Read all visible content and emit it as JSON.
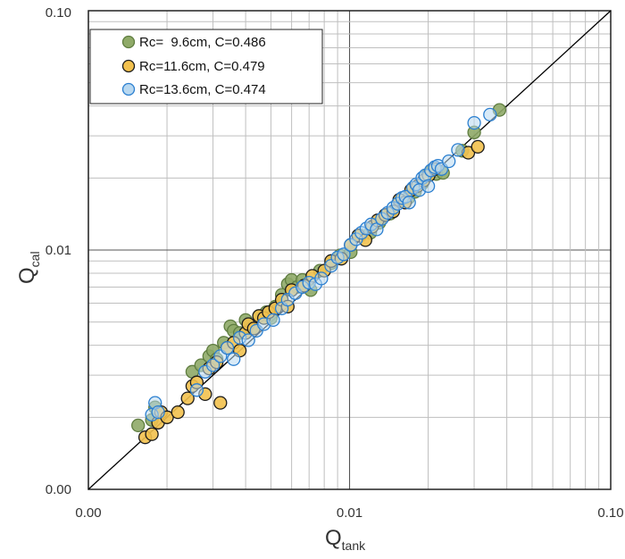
{
  "chart_data": {
    "type": "scatter",
    "scale": "log",
    "xlim": [
      0.001,
      0.1
    ],
    "ylim": [
      0.001,
      0.1
    ],
    "x_ticks": [
      {
        "value": 0.001,
        "label": "0.00"
      },
      {
        "value": 0.01,
        "label": "0.01"
      },
      {
        "value": 0.1,
        "label": "0.10"
      }
    ],
    "y_ticks": [
      {
        "value": 0.001,
        "label": "0.00"
      },
      {
        "value": 0.01,
        "label": "0.01"
      },
      {
        "value": 0.1,
        "label": "0.10"
      }
    ],
    "xlabel": {
      "main": "Q",
      "sub": "tank"
    },
    "ylabel": {
      "main": "Q",
      "sub": "cal"
    },
    "grid": true,
    "diagonal": "y=x",
    "legend_position": "top-left",
    "series": [
      {
        "name": "Rc=  9.6cm, C=0.486",
        "marker_fill": "#8faa68",
        "marker_stroke": "#5f7d40",
        "points": [
          [
            0.00155,
            0.00185
          ],
          [
            0.00175,
            0.00195
          ],
          [
            0.0018,
            0.0022
          ],
          [
            0.0025,
            0.0031
          ],
          [
            0.0027,
            0.0033
          ],
          [
            0.0029,
            0.0036
          ],
          [
            0.003,
            0.0038
          ],
          [
            0.0031,
            0.0035
          ],
          [
            0.0033,
            0.0041
          ],
          [
            0.0035,
            0.0048
          ],
          [
            0.0036,
            0.0046
          ],
          [
            0.0038,
            0.0045
          ],
          [
            0.004,
            0.0051
          ],
          [
            0.0042,
            0.0047
          ],
          [
            0.0045,
            0.0053
          ],
          [
            0.0048,
            0.0055
          ],
          [
            0.005,
            0.0052
          ],
          [
            0.0052,
            0.0058
          ],
          [
            0.0055,
            0.0065
          ],
          [
            0.0058,
            0.0072
          ],
          [
            0.006,
            0.0075
          ],
          [
            0.0063,
            0.007
          ],
          [
            0.0066,
            0.0075
          ],
          [
            0.0071,
            0.0068
          ],
          [
            0.0077,
            0.0082
          ],
          [
            0.0085,
            0.0088
          ],
          [
            0.0092,
            0.0095
          ],
          [
            0.0101,
            0.0098
          ],
          [
            0.011,
            0.0115
          ],
          [
            0.012,
            0.0118
          ],
          [
            0.013,
            0.013
          ],
          [
            0.0143,
            0.0142
          ],
          [
            0.0155,
            0.016
          ],
          [
            0.0168,
            0.0165
          ],
          [
            0.0178,
            0.0175
          ],
          [
            0.019,
            0.019
          ],
          [
            0.0198,
            0.0205
          ],
          [
            0.0207,
            0.0215
          ],
          [
            0.0215,
            0.0208
          ],
          [
            0.0228,
            0.021
          ],
          [
            0.027,
            0.026
          ],
          [
            0.03,
            0.031
          ],
          [
            0.0375,
            0.0385
          ]
        ]
      },
      {
        "name": "Rc=11.6cm, C=0.479",
        "marker_fill": "#f2c14e",
        "marker_stroke": "#1a1a1a",
        "points": [
          [
            0.00165,
            0.00165
          ],
          [
            0.00175,
            0.0017
          ],
          [
            0.00185,
            0.0019
          ],
          [
            0.0019,
            0.0021
          ],
          [
            0.002,
            0.002
          ],
          [
            0.0022,
            0.0021
          ],
          [
            0.0024,
            0.0024
          ],
          [
            0.0025,
            0.0027
          ],
          [
            0.0026,
            0.0028
          ],
          [
            0.0028,
            0.0025
          ],
          [
            0.0029,
            0.0032
          ],
          [
            0.0031,
            0.0034
          ],
          [
            0.0032,
            0.0023
          ],
          [
            0.0034,
            0.0039
          ],
          [
            0.0036,
            0.0041
          ],
          [
            0.0038,
            0.0038
          ],
          [
            0.004,
            0.0045
          ],
          [
            0.0041,
            0.0049
          ],
          [
            0.0043,
            0.0047
          ],
          [
            0.0045,
            0.0053
          ],
          [
            0.0047,
            0.0052
          ],
          [
            0.0049,
            0.0055
          ],
          [
            0.0052,
            0.0057
          ],
          [
            0.0055,
            0.0062
          ],
          [
            0.0058,
            0.0058
          ],
          [
            0.006,
            0.0068
          ],
          [
            0.0067,
            0.0071
          ],
          [
            0.0072,
            0.0078
          ],
          [
            0.008,
            0.0082
          ],
          [
            0.0085,
            0.009
          ],
          [
            0.0093,
            0.0092
          ],
          [
            0.0101,
            0.0105
          ],
          [
            0.0108,
            0.0115
          ],
          [
            0.0115,
            0.011
          ],
          [
            0.0122,
            0.0125
          ],
          [
            0.0128,
            0.0133
          ],
          [
            0.0137,
            0.014
          ],
          [
            0.0147,
            0.0145
          ],
          [
            0.0155,
            0.0162
          ],
          [
            0.0163,
            0.0158
          ],
          [
            0.0172,
            0.0178
          ],
          [
            0.0182,
            0.0185
          ],
          [
            0.0192,
            0.0195
          ],
          [
            0.0201,
            0.0205
          ],
          [
            0.0212,
            0.0218
          ],
          [
            0.0285,
            0.0255
          ],
          [
            0.031,
            0.027
          ]
        ]
      },
      {
        "name": "Rc=13.6cm, C=0.474",
        "marker_fill": "#b8d8f0",
        "marker_stroke": "#2b7fd0",
        "points": [
          [
            0.00175,
            0.00205
          ],
          [
            0.0018,
            0.0023
          ],
          [
            0.00185,
            0.0021
          ],
          [
            0.0026,
            0.0026
          ],
          [
            0.0028,
            0.0031
          ],
          [
            0.003,
            0.0033
          ],
          [
            0.0032,
            0.0036
          ],
          [
            0.0034,
            0.0039
          ],
          [
            0.0036,
            0.0035
          ],
          [
            0.0038,
            0.0043
          ],
          [
            0.0041,
            0.0042
          ],
          [
            0.0044,
            0.0046
          ],
          [
            0.0047,
            0.0049
          ],
          [
            0.0051,
            0.0051
          ],
          [
            0.0055,
            0.0057
          ],
          [
            0.0058,
            0.0062
          ],
          [
            0.0062,
            0.0066
          ],
          [
            0.0066,
            0.007
          ],
          [
            0.007,
            0.0073
          ],
          [
            0.0074,
            0.0072
          ],
          [
            0.0078,
            0.0076
          ],
          [
            0.0085,
            0.0086
          ],
          [
            0.009,
            0.0093
          ],
          [
            0.0095,
            0.0096
          ],
          [
            0.0101,
            0.0105
          ],
          [
            0.0106,
            0.0111
          ],
          [
            0.0111,
            0.0118
          ],
          [
            0.0116,
            0.0123
          ],
          [
            0.0121,
            0.0128
          ],
          [
            0.0127,
            0.0122
          ],
          [
            0.0133,
            0.0135
          ],
          [
            0.014,
            0.0143
          ],
          [
            0.0147,
            0.015
          ],
          [
            0.0153,
            0.0156
          ],
          [
            0.0159,
            0.0165
          ],
          [
            0.0164,
            0.0167
          ],
          [
            0.0169,
            0.0158
          ],
          [
            0.0175,
            0.0182
          ],
          [
            0.018,
            0.0188
          ],
          [
            0.0185,
            0.0178
          ],
          [
            0.019,
            0.02
          ],
          [
            0.0195,
            0.0205
          ],
          [
            0.02,
            0.0185
          ],
          [
            0.0205,
            0.0215
          ],
          [
            0.0212,
            0.0222
          ],
          [
            0.0218,
            0.0225
          ],
          [
            0.0225,
            0.0218
          ],
          [
            0.024,
            0.0235
          ],
          [
            0.026,
            0.0262
          ],
          [
            0.03,
            0.034
          ],
          [
            0.0345,
            0.0368
          ]
        ]
      }
    ]
  }
}
